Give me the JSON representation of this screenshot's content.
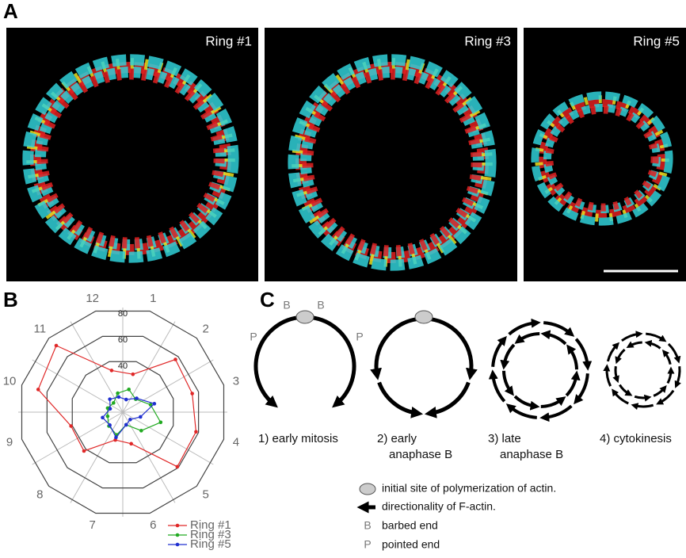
{
  "panel_a": {
    "label": "A",
    "images": [
      {
        "label": "Ring #1"
      },
      {
        "label": "Ring #3"
      },
      {
        "label": "Ring #5"
      }
    ]
  },
  "chart_data": {
    "type": "radar",
    "label": "B",
    "categories": [
      "1",
      "2",
      "3",
      "4",
      "5",
      "6",
      "7",
      "8",
      "9",
      "10",
      "11",
      "12"
    ],
    "rlim": [
      0,
      80
    ],
    "rticks": [
      40,
      60,
      80
    ],
    "series": [
      {
        "name": "Ring #1",
        "color": "#e02828",
        "values": [
          30,
          57,
          55,
          58,
          59,
          25,
          22,
          42,
          41,
          67,
          72,
          33
        ]
      },
      {
        "name": "Ring #3",
        "color": "#22aa22",
        "values": [
          18,
          14,
          22,
          30,
          20,
          10,
          18,
          15,
          12,
          12,
          10,
          15
        ]
      },
      {
        "name": "Ring #5",
        "color": "#2030d0",
        "values": [
          10,
          15,
          25,
          14,
          8,
          10,
          20,
          14,
          16,
          10,
          14,
          12
        ]
      }
    ]
  },
  "panel_c": {
    "label": "C",
    "ends": [
      "B",
      "B",
      "P",
      "P"
    ],
    "stages": [
      {
        "lines": [
          "1) early mitosis"
        ]
      },
      {
        "lines": [
          "2) early",
          "anaphase B"
        ]
      },
      {
        "lines": [
          "3) late",
          "anaphase B"
        ]
      },
      {
        "lines": [
          "4) cytokinesis"
        ]
      }
    ],
    "legend": [
      "initial site of polymerization of actin.",
      "directionality of F-actin.",
      "barbed end",
      "pointed end"
    ],
    "legend_symbols": [
      "B",
      "P"
    ]
  }
}
